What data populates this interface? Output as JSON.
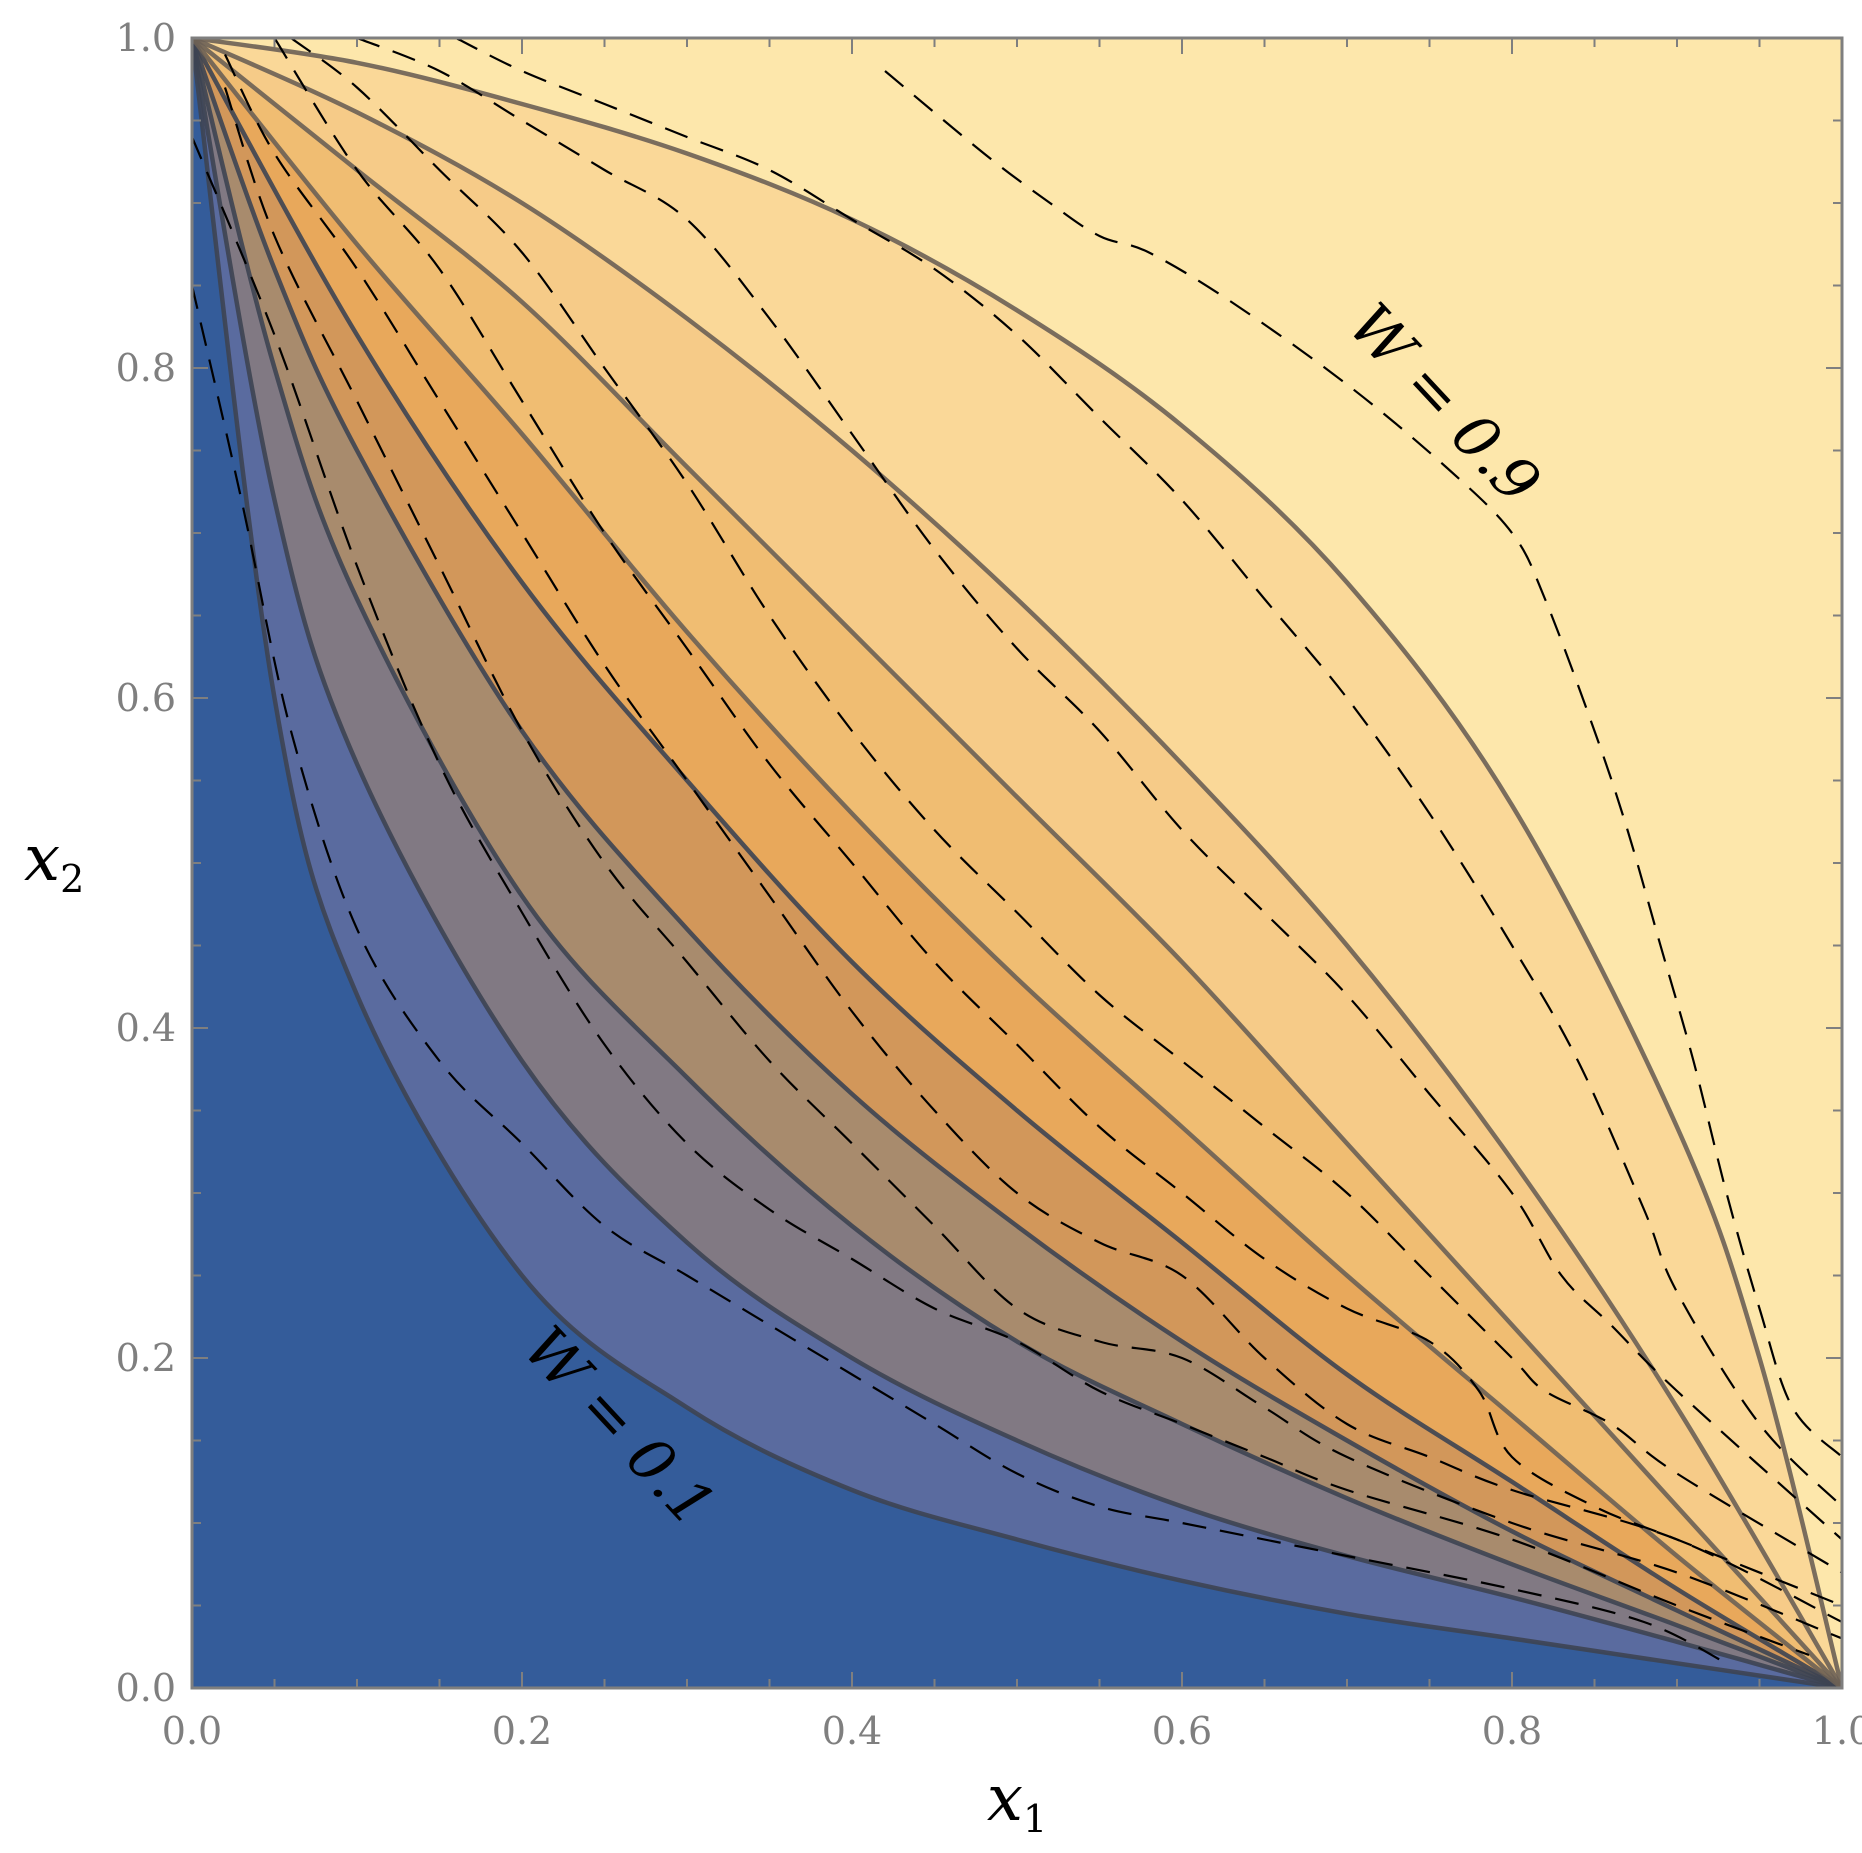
{
  "chart_data": {
    "type": "contour",
    "x_label": "x",
    "x_label_subscript": "1",
    "y_label": "x",
    "y_label_subscript": "2",
    "xlim": [
      0,
      1
    ],
    "ylim": [
      0,
      1
    ],
    "x_ticks": [
      "0.0",
      "0.2",
      "0.4",
      "0.6",
      "0.8",
      "1.0"
    ],
    "y_ticks": [
      "0.0",
      "0.2",
      "0.4",
      "0.6",
      "0.8",
      "1.0"
    ],
    "contour_levels": [
      0.1,
      0.2,
      0.3,
      0.4,
      0.5,
      0.6,
      0.7,
      0.8,
      0.9
    ],
    "solid_contours": [
      {
        "level": 0.1,
        "points": [
          [
            0.0,
            1.0
          ],
          [
            0.05,
            0.6
          ],
          [
            0.1,
            0.42
          ],
          [
            0.2,
            0.25
          ],
          [
            0.3,
            0.17
          ],
          [
            0.4,
            0.12
          ],
          [
            0.5,
            0.09
          ],
          [
            0.6,
            0.065
          ],
          [
            0.7,
            0.045
          ],
          [
            0.8,
            0.03
          ],
          [
            0.9,
            0.015
          ],
          [
            1.0,
            0.0
          ]
        ]
      },
      {
        "level": 0.2,
        "points": [
          [
            0.0,
            1.0
          ],
          [
            0.05,
            0.72
          ],
          [
            0.1,
            0.56
          ],
          [
            0.2,
            0.38
          ],
          [
            0.3,
            0.27
          ],
          [
            0.4,
            0.2
          ],
          [
            0.5,
            0.15
          ],
          [
            0.6,
            0.11
          ],
          [
            0.7,
            0.08
          ],
          [
            0.8,
            0.055
          ],
          [
            0.9,
            0.028
          ],
          [
            1.0,
            0.0
          ]
        ]
      },
      {
        "level": 0.3,
        "points": [
          [
            0.0,
            1.0
          ],
          [
            0.05,
            0.8
          ],
          [
            0.1,
            0.66
          ],
          [
            0.2,
            0.48
          ],
          [
            0.3,
            0.37
          ],
          [
            0.4,
            0.28
          ],
          [
            0.5,
            0.21
          ],
          [
            0.6,
            0.16
          ],
          [
            0.7,
            0.115
          ],
          [
            0.8,
            0.075
          ],
          [
            0.9,
            0.038
          ],
          [
            1.0,
            0.0
          ]
        ]
      },
      {
        "level": 0.4,
        "points": [
          [
            0.0,
            1.0
          ],
          [
            0.05,
            0.86
          ],
          [
            0.1,
            0.75
          ],
          [
            0.2,
            0.58
          ],
          [
            0.3,
            0.46
          ],
          [
            0.4,
            0.36
          ],
          [
            0.5,
            0.28
          ],
          [
            0.6,
            0.21
          ],
          [
            0.7,
            0.15
          ],
          [
            0.8,
            0.095
          ],
          [
            0.9,
            0.047
          ],
          [
            1.0,
            0.0
          ]
        ]
      },
      {
        "level": 0.5,
        "points": [
          [
            0.0,
            1.0
          ],
          [
            0.1,
            0.82
          ],
          [
            0.2,
            0.67
          ],
          [
            0.3,
            0.55
          ],
          [
            0.4,
            0.44
          ],
          [
            0.5,
            0.35
          ],
          [
            0.6,
            0.27
          ],
          [
            0.7,
            0.19
          ],
          [
            0.8,
            0.125
          ],
          [
            0.9,
            0.06
          ],
          [
            1.0,
            0.0
          ]
        ]
      },
      {
        "level": 0.6,
        "points": [
          [
            0.0,
            1.0
          ],
          [
            0.1,
            0.875
          ],
          [
            0.2,
            0.76
          ],
          [
            0.3,
            0.64
          ],
          [
            0.4,
            0.53
          ],
          [
            0.5,
            0.43
          ],
          [
            0.6,
            0.34
          ],
          [
            0.7,
            0.25
          ],
          [
            0.8,
            0.165
          ],
          [
            0.9,
            0.08
          ],
          [
            1.0,
            0.0
          ]
        ]
      },
      {
        "level": 0.7,
        "points": [
          [
            0.0,
            1.0
          ],
          [
            0.1,
            0.92
          ],
          [
            0.2,
            0.84
          ],
          [
            0.3,
            0.74
          ],
          [
            0.4,
            0.64
          ],
          [
            0.5,
            0.54
          ],
          [
            0.6,
            0.44
          ],
          [
            0.7,
            0.33
          ],
          [
            0.8,
            0.22
          ],
          [
            0.9,
            0.11
          ],
          [
            1.0,
            0.0
          ]
        ]
      },
      {
        "level": 0.8,
        "points": [
          [
            0.0,
            1.0
          ],
          [
            0.1,
            0.955
          ],
          [
            0.2,
            0.9
          ],
          [
            0.3,
            0.83
          ],
          [
            0.4,
            0.75
          ],
          [
            0.5,
            0.66
          ],
          [
            0.6,
            0.56
          ],
          [
            0.7,
            0.45
          ],
          [
            0.8,
            0.32
          ],
          [
            0.9,
            0.17
          ],
          [
            1.0,
            0.0
          ]
        ]
      },
      {
        "level": 0.9,
        "points": [
          [
            0.0,
            1.0
          ],
          [
            0.1,
            0.985
          ],
          [
            0.2,
            0.96
          ],
          [
            0.3,
            0.93
          ],
          [
            0.4,
            0.89
          ],
          [
            0.5,
            0.835
          ],
          [
            0.6,
            0.765
          ],
          [
            0.7,
            0.67
          ],
          [
            0.8,
            0.535
          ],
          [
            0.9,
            0.34
          ],
          [
            0.95,
            0.2
          ],
          [
            1.0,
            0.0
          ]
        ]
      }
    ],
    "dashed_contours": [
      {
        "level": 0.1,
        "points": [
          [
            0.0,
            0.85
          ],
          [
            0.03,
            0.72
          ],
          [
            0.06,
            0.58
          ],
          [
            0.1,
            0.46
          ],
          [
            0.15,
            0.38
          ],
          [
            0.2,
            0.33
          ],
          [
            0.25,
            0.28
          ],
          [
            0.3,
            0.25
          ],
          [
            0.35,
            0.22
          ],
          [
            0.4,
            0.19
          ],
          [
            0.45,
            0.16
          ],
          [
            0.5,
            0.13
          ],
          [
            0.55,
            0.11
          ],
          [
            0.6,
            0.1
          ],
          [
            0.7,
            0.08
          ],
          [
            0.8,
            0.06
          ],
          [
            0.88,
            0.04
          ],
          [
            0.93,
            0.015
          ]
        ]
      },
      {
        "level": 0.2,
        "points": [
          [
            0.0,
            0.94
          ],
          [
            0.05,
            0.82
          ],
          [
            0.1,
            0.68
          ],
          [
            0.15,
            0.56
          ],
          [
            0.2,
            0.47
          ],
          [
            0.25,
            0.39
          ],
          [
            0.3,
            0.33
          ],
          [
            0.35,
            0.29
          ],
          [
            0.4,
            0.26
          ],
          [
            0.45,
            0.23
          ],
          [
            0.5,
            0.21
          ],
          [
            0.55,
            0.18
          ],
          [
            0.6,
            0.16
          ],
          [
            0.65,
            0.14
          ],
          [
            0.7,
            0.12
          ],
          [
            0.8,
            0.09
          ],
          [
            0.9,
            0.05
          ],
          [
            0.98,
            0.02
          ]
        ]
      },
      {
        "level": 0.3,
        "points": [
          [
            0.02,
            0.97
          ],
          [
            0.05,
            0.88
          ],
          [
            0.1,
            0.78
          ],
          [
            0.15,
            0.68
          ],
          [
            0.2,
            0.58
          ],
          [
            0.25,
            0.5
          ],
          [
            0.3,
            0.44
          ],
          [
            0.35,
            0.38
          ],
          [
            0.4,
            0.33
          ],
          [
            0.45,
            0.28
          ],
          [
            0.5,
            0.23
          ],
          [
            0.55,
            0.21
          ],
          [
            0.6,
            0.2
          ],
          [
            0.65,
            0.17
          ],
          [
            0.7,
            0.14
          ],
          [
            0.8,
            0.1
          ],
          [
            0.9,
            0.07
          ],
          [
            1.0,
            0.03
          ]
        ]
      },
      {
        "level": 0.4,
        "points": [
          [
            0.02,
            0.99
          ],
          [
            0.05,
            0.93
          ],
          [
            0.1,
            0.86
          ],
          [
            0.15,
            0.78
          ],
          [
            0.2,
            0.7
          ],
          [
            0.25,
            0.62
          ],
          [
            0.3,
            0.55
          ],
          [
            0.35,
            0.48
          ],
          [
            0.4,
            0.41
          ],
          [
            0.45,
            0.35
          ],
          [
            0.5,
            0.3
          ],
          [
            0.55,
            0.27
          ],
          [
            0.6,
            0.25
          ],
          [
            0.65,
            0.2
          ],
          [
            0.7,
            0.16
          ],
          [
            0.75,
            0.14
          ],
          [
            0.8,
            0.12
          ],
          [
            0.9,
            0.09
          ],
          [
            1.0,
            0.04
          ]
        ]
      },
      {
        "level": 0.5,
        "points": [
          [
            0.05,
            1.0
          ],
          [
            0.1,
            0.92
          ],
          [
            0.15,
            0.86
          ],
          [
            0.2,
            0.78
          ],
          [
            0.25,
            0.7
          ],
          [
            0.3,
            0.63
          ],
          [
            0.35,
            0.56
          ],
          [
            0.4,
            0.5
          ],
          [
            0.45,
            0.44
          ],
          [
            0.5,
            0.39
          ],
          [
            0.55,
            0.34
          ],
          [
            0.6,
            0.3
          ],
          [
            0.65,
            0.26
          ],
          [
            0.7,
            0.23
          ],
          [
            0.75,
            0.21
          ],
          [
            0.78,
            0.18
          ],
          [
            0.8,
            0.14
          ],
          [
            0.85,
            0.11
          ],
          [
            0.9,
            0.09
          ],
          [
            1.0,
            0.05
          ]
        ]
      },
      {
        "level": 0.6,
        "points": [
          [
            0.06,
            1.0
          ],
          [
            0.1,
            0.97
          ],
          [
            0.15,
            0.92
          ],
          [
            0.2,
            0.87
          ],
          [
            0.25,
            0.8
          ],
          [
            0.3,
            0.73
          ],
          [
            0.35,
            0.65
          ],
          [
            0.4,
            0.58
          ],
          [
            0.45,
            0.52
          ],
          [
            0.5,
            0.47
          ],
          [
            0.55,
            0.42
          ],
          [
            0.6,
            0.38
          ],
          [
            0.65,
            0.34
          ],
          [
            0.7,
            0.3
          ],
          [
            0.75,
            0.25
          ],
          [
            0.8,
            0.2
          ],
          [
            0.82,
            0.18
          ],
          [
            0.86,
            0.16
          ],
          [
            0.9,
            0.13
          ],
          [
            1.0,
            0.07
          ]
        ]
      },
      {
        "level": 0.7,
        "points": [
          [
            0.1,
            1.0
          ],
          [
            0.15,
            0.98
          ],
          [
            0.2,
            0.95
          ],
          [
            0.25,
            0.92
          ],
          [
            0.3,
            0.89
          ],
          [
            0.35,
            0.83
          ],
          [
            0.4,
            0.76
          ],
          [
            0.45,
            0.69
          ],
          [
            0.5,
            0.63
          ],
          [
            0.55,
            0.58
          ],
          [
            0.6,
            0.52
          ],
          [
            0.65,
            0.47
          ],
          [
            0.7,
            0.42
          ],
          [
            0.75,
            0.36
          ],
          [
            0.8,
            0.3
          ],
          [
            0.83,
            0.25
          ],
          [
            0.86,
            0.22
          ],
          [
            0.9,
            0.18
          ],
          [
            1.0,
            0.09
          ]
        ]
      },
      {
        "level": 0.8,
        "points": [
          [
            0.16,
            1.0
          ],
          [
            0.2,
            0.98
          ],
          [
            0.25,
            0.96
          ],
          [
            0.3,
            0.94
          ],
          [
            0.35,
            0.92
          ],
          [
            0.4,
            0.89
          ],
          [
            0.45,
            0.86
          ],
          [
            0.5,
            0.82
          ],
          [
            0.55,
            0.77
          ],
          [
            0.6,
            0.72
          ],
          [
            0.65,
            0.66
          ],
          [
            0.7,
            0.6
          ],
          [
            0.75,
            0.53
          ],
          [
            0.8,
            0.45
          ],
          [
            0.84,
            0.38
          ],
          [
            0.88,
            0.29
          ],
          [
            0.9,
            0.24
          ],
          [
            0.95,
            0.16
          ],
          [
            1.0,
            0.11
          ]
        ]
      },
      {
        "level": 0.9,
        "points": [
          [
            0.42,
            0.98
          ],
          [
            0.48,
            0.93
          ],
          [
            0.52,
            0.9
          ],
          [
            0.55,
            0.88
          ],
          [
            0.58,
            0.87
          ],
          [
            0.63,
            0.84
          ],
          [
            0.7,
            0.79
          ],
          [
            0.76,
            0.74
          ],
          [
            0.8,
            0.7
          ],
          [
            0.82,
            0.66
          ],
          [
            0.85,
            0.58
          ],
          [
            0.87,
            0.52
          ],
          [
            0.89,
            0.45
          ],
          [
            0.91,
            0.38
          ],
          [
            0.93,
            0.3
          ],
          [
            0.95,
            0.23
          ],
          [
            0.97,
            0.17
          ],
          [
            1.0,
            0.14
          ]
        ]
      }
    ],
    "fill_colors": [
      "#345c9a",
      "#5a6b9f",
      "#817983",
      "#a88b6d",
      "#d2975a",
      "#e8a85b",
      "#f0bd72",
      "#f6cb88",
      "#fad898",
      "#fde7ab"
    ],
    "annotations": [
      {
        "text": "W = 0.1",
        "x": 0.25,
        "y": 0.15,
        "angle_deg": 47
      },
      {
        "text": "W = 0.9",
        "x": 0.75,
        "y": 0.77,
        "angle_deg": 47
      }
    ],
    "grid": false
  }
}
